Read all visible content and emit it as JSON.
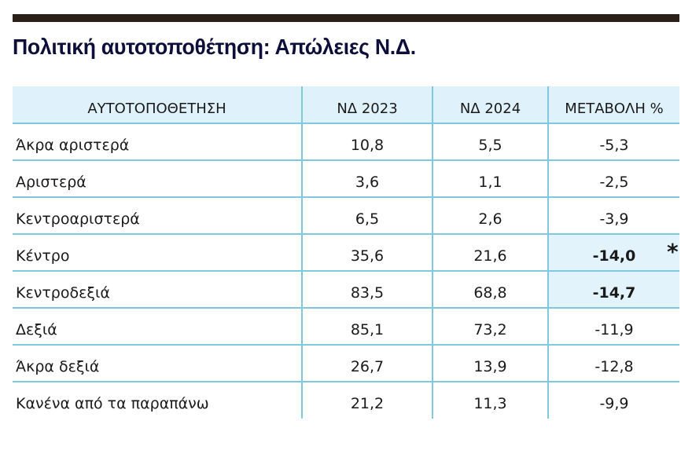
{
  "header": {
    "title": "Πολιτική αυτοτοποθέτηση: Απώλειες Ν.Δ."
  },
  "table": {
    "columns": [
      "ΑΥΤΟΤΟΠΟΘΕΤΗΣΗ",
      "ΝΔ 2023",
      "ΝΔ 2024",
      "ΜΕΤΑΒΟΛΗ %"
    ],
    "rows": [
      {
        "label": "Άκρα αριστερά",
        "nd2023": "10,8",
        "nd2024": "5,5",
        "change": "-5,3"
      },
      {
        "label": "Αριστερά",
        "nd2023": "3,6",
        "nd2024": "1,1",
        "change": "-2,5"
      },
      {
        "label": "Κεντροαριστερά",
        "nd2023": "6,5",
        "nd2024": "2,6",
        "change": "-3,9"
      },
      {
        "label": "Κέντρο",
        "nd2023": "35,6",
        "nd2024": "21,6",
        "change": "-14,0",
        "highlight": true
      },
      {
        "label": "Κεντροδεξιά",
        "nd2023": "83,5",
        "nd2024": "68,8",
        "change": "-14,7",
        "highlight": true
      },
      {
        "label": "Δεξιά",
        "nd2023": "85,1",
        "nd2024": "73,2",
        "change": "-11,9"
      },
      {
        "label": "Άκρα δεξιά",
        "nd2023": "26,7",
        "nd2024": "13,9",
        "change": "-12,8"
      },
      {
        "label": "Κανένα από τα παραπάνω",
        "nd2023": "21,2",
        "nd2024": "11,3",
        "change": "-9,9"
      }
    ],
    "footnote_marker": "*"
  },
  "colors": {
    "top_bar": "#2a2018",
    "title": "#0d0f3a",
    "grid": "#7ec8e0",
    "header_bg": "#dff1fa",
    "highlight_bg": "#e3f3fb"
  }
}
